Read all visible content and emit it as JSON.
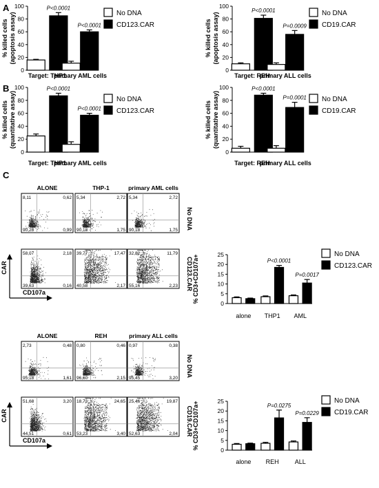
{
  "panels": {
    "A": "A",
    "B": "B",
    "C": "C"
  },
  "legend": {
    "no_dna": "No DNA",
    "cd123": "CD123.CAR",
    "cd19": "CD19.CAR"
  },
  "colors": {
    "no_dna": "#ffffff",
    "car": "#000000",
    "stroke": "#000000"
  },
  "chart_data": [
    {
      "id": "A-left",
      "type": "bar",
      "ylabel": "% killed cells\n(apoptosis assay)",
      "ylim": [
        0,
        100
      ],
      "yticks": [
        0,
        20,
        40,
        60,
        80,
        100
      ],
      "categories": [
        "Target: THP1",
        "primary AML cells"
      ],
      "series": [
        {
          "name": "No DNA",
          "values": [
            16,
            11
          ],
          "errors": [
            1,
            3
          ]
        },
        {
          "name": "CD123.CAR",
          "values": [
            85,
            60
          ],
          "errors": [
            5,
            3
          ]
        }
      ],
      "pvalues": [
        "P<0.0001",
        "P<0.0001"
      ]
    },
    {
      "id": "A-right",
      "type": "bar",
      "ylabel": "% killed cells\n(apoptosis assay)",
      "ylim": [
        0,
        100
      ],
      "yticks": [
        0,
        20,
        40,
        60,
        80,
        100
      ],
      "categories": [
        "Target: REH",
        "primary ALL cells"
      ],
      "series": [
        {
          "name": "No DNA",
          "values": [
            10,
            9
          ],
          "errors": [
            1.5,
            2.5
          ]
        },
        {
          "name": "CD19.CAR",
          "values": [
            81,
            56
          ],
          "errors": [
            5,
            6
          ]
        }
      ],
      "pvalues": [
        "P<0.0001",
        "P=0.0009"
      ]
    },
    {
      "id": "B-left",
      "type": "bar",
      "ylabel": "% killed cells\n(quantitative assay)",
      "ylim": [
        0,
        100
      ],
      "yticks": [
        0,
        20,
        40,
        60,
        80,
        100
      ],
      "categories": [
        "Target: THP1",
        "primary AML cells"
      ],
      "series": [
        {
          "name": "No DNA",
          "values": [
            25,
            12
          ],
          "errors": [
            3,
            4
          ]
        },
        {
          "name": "CD123.CAR",
          "values": [
            87,
            57
          ],
          "errors": [
            4,
            3
          ]
        }
      ],
      "pvalues": [
        "P<0.0001",
        "P<0.0001"
      ]
    },
    {
      "id": "B-right",
      "type": "bar",
      "ylabel": "% killed cells\n(quantitative assay)",
      "ylim": [
        0,
        100
      ],
      "yticks": [
        0,
        20,
        40,
        60,
        80,
        100
      ],
      "categories": [
        "Target: REH",
        "primary ALL cells"
      ],
      "series": [
        {
          "name": "No DNA",
          "values": [
            6,
            6
          ],
          "errors": [
            3,
            4
          ]
        },
        {
          "name": "CD19.CAR",
          "values": [
            88,
            69
          ],
          "errors": [
            3,
            8
          ]
        }
      ],
      "pvalues": [
        "P<0.0001",
        "P=0.0001"
      ]
    },
    {
      "id": "C-CD123",
      "type": "bar",
      "ylabel": "% CD3+CD107a+",
      "ylim": [
        0,
        25
      ],
      "yticks": [
        0,
        5,
        10,
        15,
        20,
        25
      ],
      "categories": [
        "alone",
        "THP1",
        "AML"
      ],
      "series": [
        {
          "name": "No DNA",
          "values": [
            3,
            3.5,
            4
          ],
          "errors": [
            0.4,
            0.4,
            0.4
          ]
        },
        {
          "name": "CD123.CAR",
          "values": [
            2.5,
            18.5,
            10.5
          ],
          "errors": [
            0.3,
            1,
            1.8
          ]
        }
      ],
      "pvalues": [
        "",
        "P<0.0001",
        "P=0.0017"
      ]
    },
    {
      "id": "C-CD19",
      "type": "bar",
      "ylabel": "% CD3+CD107a+",
      "ylim": [
        0,
        25
      ],
      "yticks": [
        0,
        5,
        10,
        15,
        20,
        25
      ],
      "categories": [
        "alone",
        "REH",
        "ALL"
      ],
      "series": [
        {
          "name": "No DNA",
          "values": [
            3,
            3.5,
            4.2
          ],
          "errors": [
            0.4,
            0.5,
            0.5
          ]
        },
        {
          "name": "CD19.CAR",
          "values": [
            3.3,
            16.5,
            14.2
          ],
          "errors": [
            0.3,
            4,
            2.4
          ]
        }
      ],
      "pvalues": [
        "",
        "P=0.0275",
        "P=0.0229"
      ]
    }
  ],
  "flow": {
    "side_labels": [
      "No DNA",
      "CD123.CAR",
      "No DNA",
      "CD19.CAR"
    ],
    "axis_x": "CD107a",
    "axis_y": "CAR",
    "groups": [
      {
        "columns": [
          "ALONE",
          "THP-1",
          "primary AML cells"
        ],
        "rows": [
          {
            "density": [
              1,
              1,
              1
            ],
            "quads": [
              [
                "8,11",
                "0,62",
                "90,28",
                "0,99"
              ],
              [
                "5,34",
                "2,72",
                "90,18",
                "1,75"
              ],
              [
                "5,34",
                "2,72",
                "90,18",
                "1,75"
              ]
            ]
          },
          {
            "density": [
              2,
              3,
              3
            ],
            "quads": [
              [
                "58,07",
                "2,18",
                "39,63",
                "0,16"
              ],
              [
                "39,77",
                "17,47",
                "40,58",
                "2,17"
              ],
              [
                "32,82",
                "11,79",
                "55,16",
                "2,23"
              ]
            ]
          }
        ]
      },
      {
        "columns": [
          "ALONE",
          "REH",
          "primary ALL cells"
        ],
        "rows": [
          {
            "density": [
              1,
              1,
              1
            ],
            "quads": [
              [
                "2,73",
                "0,48",
                "95,18",
                "1,61"
              ],
              [
                "0,80",
                "0,46",
                "96,60",
                "2,15"
              ],
              [
                "0,97",
                "0,38",
                "95,45",
                "3,20"
              ]
            ]
          },
          {
            "density": [
              2,
              3,
              3
            ],
            "quads": [
              [
                "51,68",
                "3,20",
                "44,51",
                "0,61"
              ],
              [
                "18,73",
                "24,65",
                "53,23",
                "3,40"
              ],
              [
                "25,46",
                "19,87",
                "52,63",
                "2,04"
              ]
            ]
          }
        ]
      }
    ]
  }
}
